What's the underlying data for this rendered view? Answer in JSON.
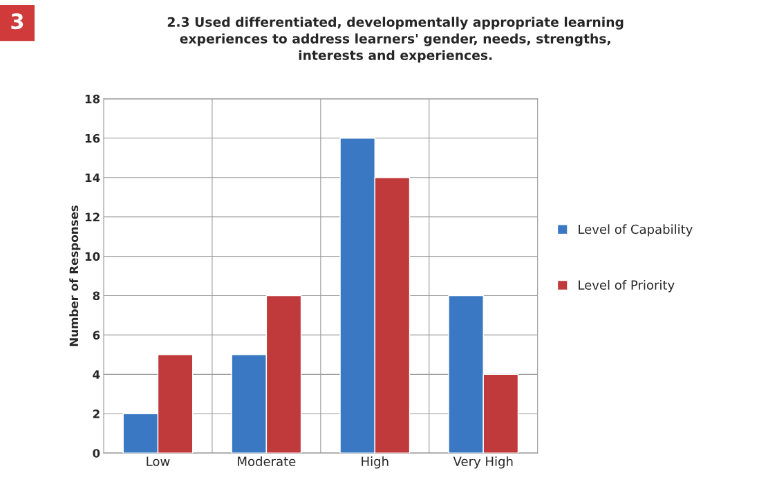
{
  "chart_data": {
    "type": "bar",
    "title": "2.3 Used differentiated, developmentally appropriate learning\nexperiences to address learners' gender, needs, strengths,\ninterests and experiences.",
    "ylabel": "Number of Responses",
    "categories": [
      "Low",
      "Moderate",
      "High",
      "Very High"
    ],
    "series": [
      {
        "name": "Level of Capability",
        "color": "#3a78c4",
        "values": [
          2,
          5,
          16,
          8
        ]
      },
      {
        "name": "Level of Priority",
        "color": "#c0393b",
        "values": [
          5,
          8,
          14,
          4
        ]
      }
    ],
    "ylim": [
      0,
      18
    ],
    "yticks": [
      0,
      2,
      4,
      6,
      8,
      10,
      12,
      14,
      16,
      18
    ],
    "grid": true,
    "legend": "right",
    "annotations": [
      "3"
    ]
  }
}
